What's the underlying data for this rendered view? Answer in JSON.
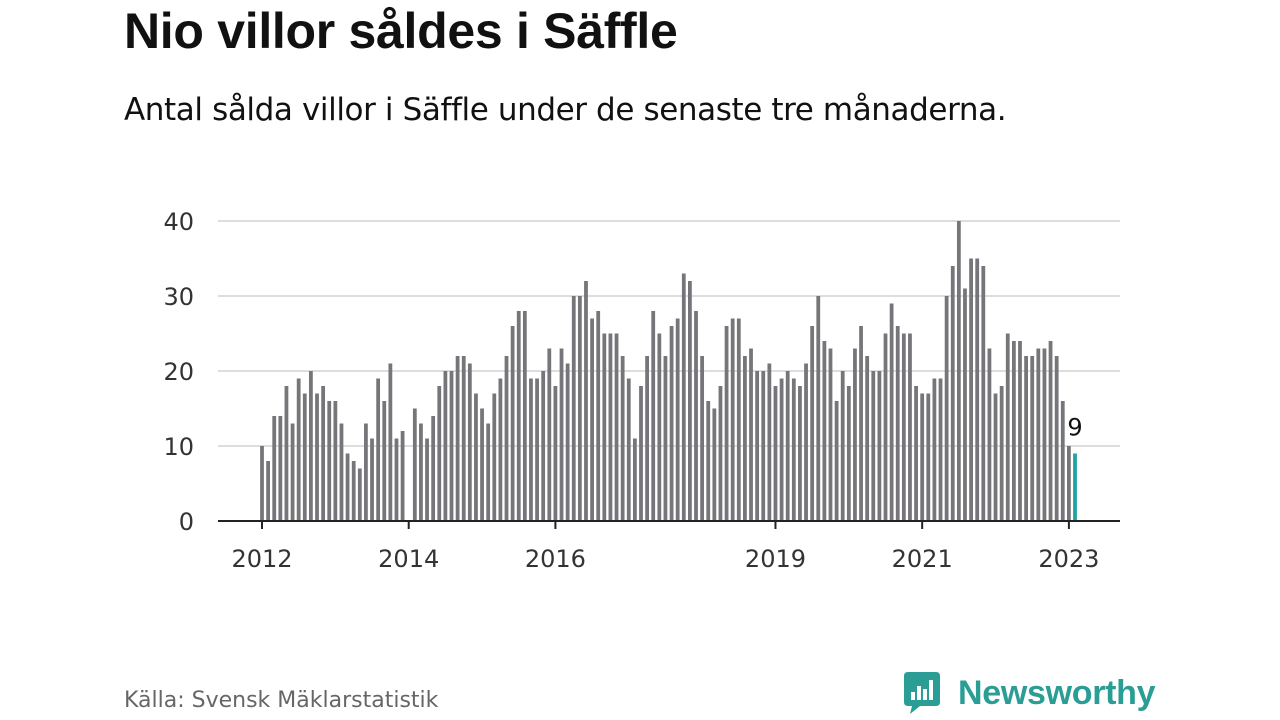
{
  "title": "Nio villor såldes i Säffle",
  "subtitle": "Antal sålda villor i Säffle under de senaste tre månaderna.",
  "source": "Källa: Svensk Mäklarstatistik",
  "brand": {
    "name": "Newsworthy",
    "icon": "newsworthy-logo-icon"
  },
  "colors": {
    "bar": "#76767a",
    "highlight": "#1fa3a3",
    "brand": "#2a9d95",
    "grid": "#dddddd",
    "axis": "#222222"
  },
  "chart_data": {
    "type": "bar",
    "ylim": [
      0,
      40
    ],
    "yticks": [
      0,
      10,
      20,
      30,
      40
    ],
    "xtick_labels": [
      {
        "label": "2012",
        "year": 2012
      },
      {
        "label": "2014",
        "year": 2014
      },
      {
        "label": "2016",
        "year": 2016
      },
      {
        "label": "2019",
        "year": 2019
      },
      {
        "label": "2021",
        "year": 2021
      },
      {
        "label": "2023",
        "year": 2023
      }
    ],
    "start": "2012-01",
    "end": "2023-02",
    "values": [
      10,
      8,
      14,
      14,
      18,
      13,
      19,
      17,
      20,
      17,
      18,
      16,
      16,
      13,
      9,
      8,
      7,
      13,
      11,
      19,
      16,
      21,
      11,
      12,
      0,
      15,
      13,
      11,
      14,
      18,
      20,
      20,
      22,
      22,
      21,
      17,
      15,
      13,
      17,
      19,
      22,
      26,
      28,
      28,
      19,
      19,
      20,
      23,
      18,
      23,
      21,
      30,
      30,
      32,
      27,
      28,
      25,
      25,
      25,
      22,
      19,
      11,
      18,
      22,
      28,
      25,
      22,
      26,
      27,
      33,
      32,
      28,
      22,
      16,
      15,
      18,
      26,
      27,
      27,
      22,
      23,
      20,
      20,
      21,
      18,
      19,
      20,
      19,
      18,
      21,
      26,
      30,
      24,
      23,
      16,
      20,
      18,
      23,
      26,
      22,
      20,
      20,
      25,
      29,
      26,
      25,
      25,
      18,
      17,
      17,
      19,
      19,
      30,
      34,
      40,
      31,
      35,
      35,
      34,
      23,
      17,
      18,
      25,
      24,
      24,
      22,
      22,
      23,
      23,
      24,
      22,
      16,
      10,
      9
    ],
    "highlight_label": "9"
  }
}
